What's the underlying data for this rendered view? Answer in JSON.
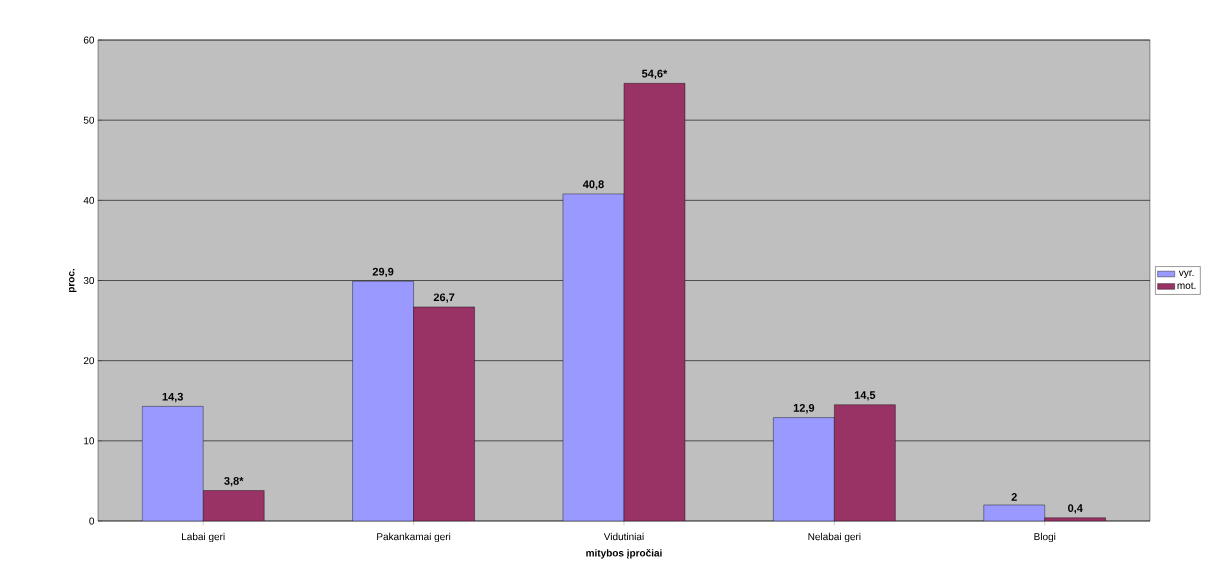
{
  "chart_data": {
    "type": "bar",
    "xlabel": "mitybos įpročiai",
    "ylabel": "proc.",
    "categories": [
      "Labai geri",
      "Pakankamai geri",
      "Vidutiniai",
      "Nelabai geri",
      "Blogi"
    ],
    "series": [
      {
        "name": "vyr.",
        "color": "#9999ff",
        "values": [
          14.3,
          29.9,
          40.8,
          12.9,
          2
        ],
        "value_labels": [
          "14,3",
          "29,9",
          "40,8",
          "12,9",
          "2"
        ]
      },
      {
        "name": "mot.",
        "color": "#993366",
        "values": [
          3.8,
          26.7,
          54.6,
          14.5,
          0.4
        ],
        "value_labels": [
          "3,8*",
          "26,7",
          "54,6*",
          "14,5",
          "0,4"
        ]
      }
    ],
    "ylim": [
      0,
      60
    ],
    "yticks": [
      0,
      10,
      20,
      30,
      40,
      50,
      60
    ],
    "grid": "y",
    "legend": "right"
  }
}
